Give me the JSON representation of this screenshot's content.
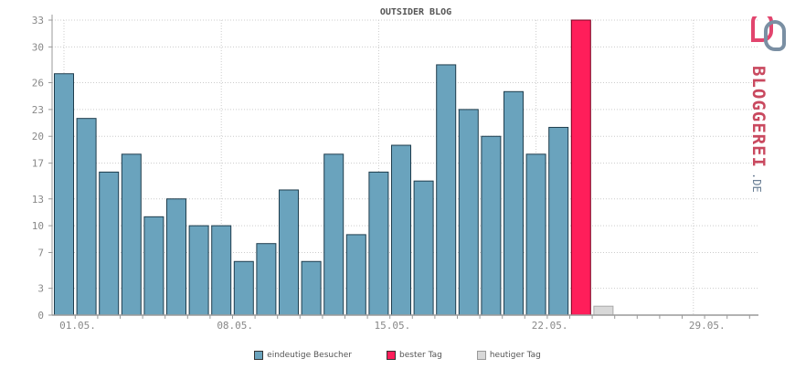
{
  "chart_data": {
    "type": "bar",
    "title": "OUTSIDER BLOG",
    "y_ticks": [
      0,
      3,
      7,
      10,
      13,
      17,
      20,
      23,
      26,
      30,
      33
    ],
    "ylim": [
      0,
      33
    ],
    "x_tick_labels": [
      {
        "label": "01.05.",
        "day": 1
      },
      {
        "label": "08.05.",
        "day": 8
      },
      {
        "label": "15.05.",
        "day": 15
      },
      {
        "label": "22.05.",
        "day": 22
      },
      {
        "label": "29.05.",
        "day": 29
      }
    ],
    "grid": true,
    "legend_position": "bottom",
    "colors": {
      "visitors": "#6aa3bd",
      "best_day": "#ff1e5a",
      "today": "#d8d8d8",
      "axis": "#999999",
      "tick_text": "#888888",
      "title": "#555555"
    },
    "series": [
      {
        "name": "eindeutige Besucher",
        "days": [
          1,
          2,
          3,
          4,
          5,
          6,
          7,
          8,
          9,
          10,
          11,
          12,
          13,
          14,
          15,
          16,
          17,
          18,
          19,
          20,
          21,
          22
        ],
        "values": [
          27,
          22,
          16,
          18,
          11,
          13,
          10,
          10,
          6,
          8,
          14,
          6,
          18,
          9,
          16,
          19,
          15,
          28,
          23,
          20,
          25,
          18
        ]
      },
      {
        "name": "bester Tag",
        "days": [
          24
        ],
        "values": [
          33
        ]
      },
      {
        "name": "heutiger Tag",
        "days": [
          25
        ],
        "values": [
          1
        ]
      }
    ]
  },
  "extra_bar": {
    "day": 23,
    "value": 21
  },
  "legend": {
    "items": [
      {
        "label": "eindeutige Besucher",
        "color": "#6aa3bd"
      },
      {
        "label": "bester Tag",
        "color": "#ff1e5a"
      },
      {
        "label": "heutiger Tag",
        "color": "#d8d8d8"
      }
    ]
  },
  "logo": {
    "text": "BLOGGEREI",
    "suffix": ".DE"
  }
}
